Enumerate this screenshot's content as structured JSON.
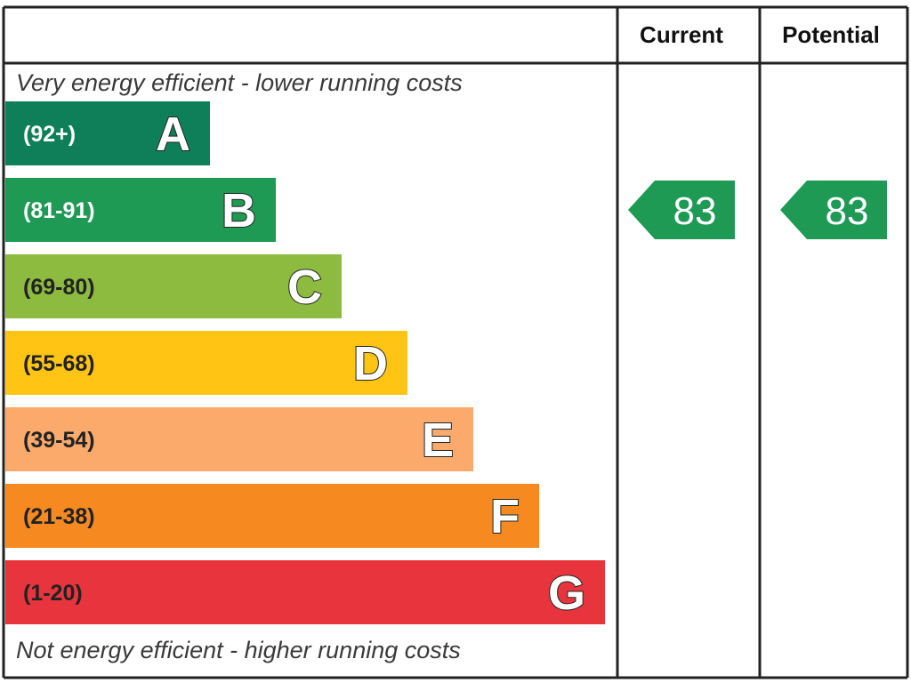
{
  "header": {
    "current_label": "Current",
    "potential_label": "Potential"
  },
  "notes": {
    "top": "Very energy efficient - lower running costs",
    "bottom": "Not energy efficient - higher running costs"
  },
  "chart_data": {
    "type": "bar",
    "categories": [
      "A",
      "B",
      "C",
      "D",
      "E",
      "F",
      "G"
    ],
    "bands": [
      {
        "letter": "A",
        "range": "(92+)",
        "color": "#0f7f5a",
        "range_text_color": "#ffffff"
      },
      {
        "letter": "B",
        "range": "(81-91)",
        "color": "#1e9a55",
        "range_text_color": "#ffffff"
      },
      {
        "letter": "C",
        "range": "(69-80)",
        "color": "#8cbb3f",
        "range_text_color": "#222222"
      },
      {
        "letter": "D",
        "range": "(55-68)",
        "color": "#ffc414",
        "range_text_color": "#222222"
      },
      {
        "letter": "E",
        "range": "(39-54)",
        "color": "#fbaa6c",
        "range_text_color": "#222222"
      },
      {
        "letter": "F",
        "range": "(21-38)",
        "color": "#f68a21",
        "range_text_color": "#222222"
      },
      {
        "letter": "G",
        "range": "(1-20)",
        "color": "#e8343c",
        "range_text_color": "#222222"
      }
    ],
    "current": {
      "value": 83,
      "band": "B",
      "color": "#1e9a55"
    },
    "potential": {
      "value": 83,
      "band": "B",
      "color": "#1e9a55"
    }
  }
}
